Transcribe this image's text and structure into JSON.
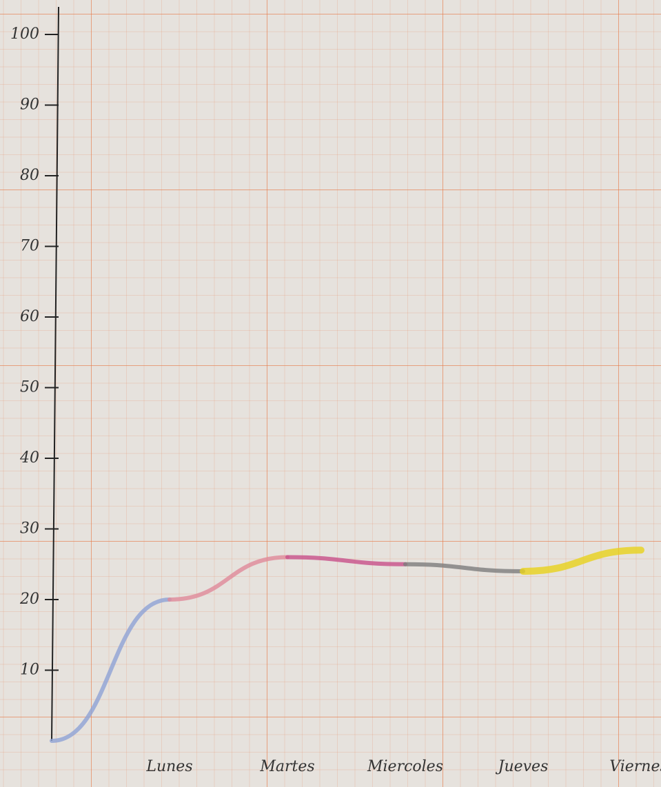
{
  "chart_data": {
    "type": "line",
    "categories": [
      null,
      "Lunes",
      "Martes",
      "Miercoles",
      "Jueves",
      "Viernes."
    ],
    "values": [
      0,
      20,
      26,
      25,
      24,
      27
    ],
    "segment_colors": [
      "#8fa3d6",
      "#e08a9a",
      "#c8508a",
      "#7d7d7d",
      "#e8d21c"
    ],
    "ylim": [
      0,
      100
    ],
    "yticks": [
      10,
      20,
      30,
      40,
      50,
      60,
      70,
      80,
      90,
      100
    ],
    "grid": true
  }
}
